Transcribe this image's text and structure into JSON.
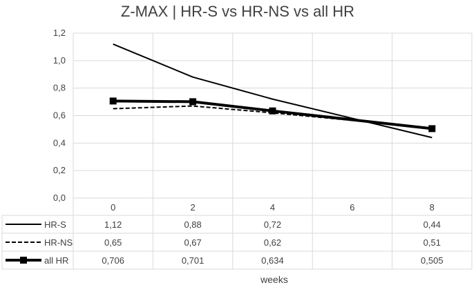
{
  "chart_data": {
    "type": "line",
    "title": "Z-MAX | HR-S vs HR-NS vs all HR",
    "xlabel": "weeks",
    "ylabel": "",
    "categories": [
      "0",
      "2",
      "4",
      "6",
      "8"
    ],
    "y_ticks": [
      "0,0",
      "0,2",
      "0,4",
      "0,6",
      "0,8",
      "1,0",
      "1,2"
    ],
    "ylim": [
      0,
      1.2
    ],
    "grid": true,
    "legend": "data-table-bottom",
    "series": [
      {
        "name": "HR-S",
        "style": "solid-thin",
        "color": "#000000",
        "values": [
          1.12,
          0.88,
          0.72,
          null,
          0.44
        ],
        "labels": [
          "1,12",
          "0,88",
          "0,72",
          "",
          "0,44"
        ]
      },
      {
        "name": "HR-NS",
        "style": "dashed",
        "color": "#000000",
        "values": [
          0.65,
          0.67,
          0.62,
          null,
          0.51
        ],
        "labels": [
          "0,65",
          "0,67",
          "0,62",
          "",
          "0,51"
        ]
      },
      {
        "name": "all HR",
        "style": "thick-square-markers",
        "color": "#000000",
        "values": [
          0.706,
          0.701,
          0.634,
          null,
          0.505
        ],
        "labels": [
          "0,706",
          "0,701",
          "0,634",
          "",
          "0,505"
        ]
      }
    ]
  }
}
